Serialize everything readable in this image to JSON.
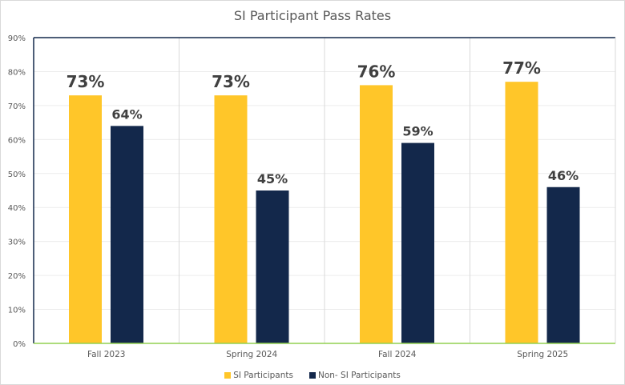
{
  "chart_data": {
    "type": "bar",
    "title": "SI Participant Pass Rates",
    "categories": [
      "Fall 2023",
      "Spring 2024",
      "Fall 2024",
      "Spring 2025"
    ],
    "series": [
      {
        "name": "SI Participants",
        "values": [
          73,
          73,
          76,
          77
        ],
        "labels": [
          "73%",
          "73%",
          "76%",
          "77%"
        ],
        "color": "#FFC629"
      },
      {
        "name": "Non- SI Participants",
        "values": [
          64,
          45,
          59,
          46
        ],
        "labels": [
          "64%",
          "45%",
          "59%",
          "46%"
        ],
        "color": "#13284B"
      }
    ],
    "ylim": [
      0,
      90
    ],
    "yticks": [
      "0%",
      "10%",
      "20%",
      "30%",
      "40%",
      "50%",
      "60%",
      "70%",
      "80%",
      "90%"
    ],
    "xlabel": "",
    "ylabel": "",
    "grid": true,
    "legend": "bottom"
  }
}
